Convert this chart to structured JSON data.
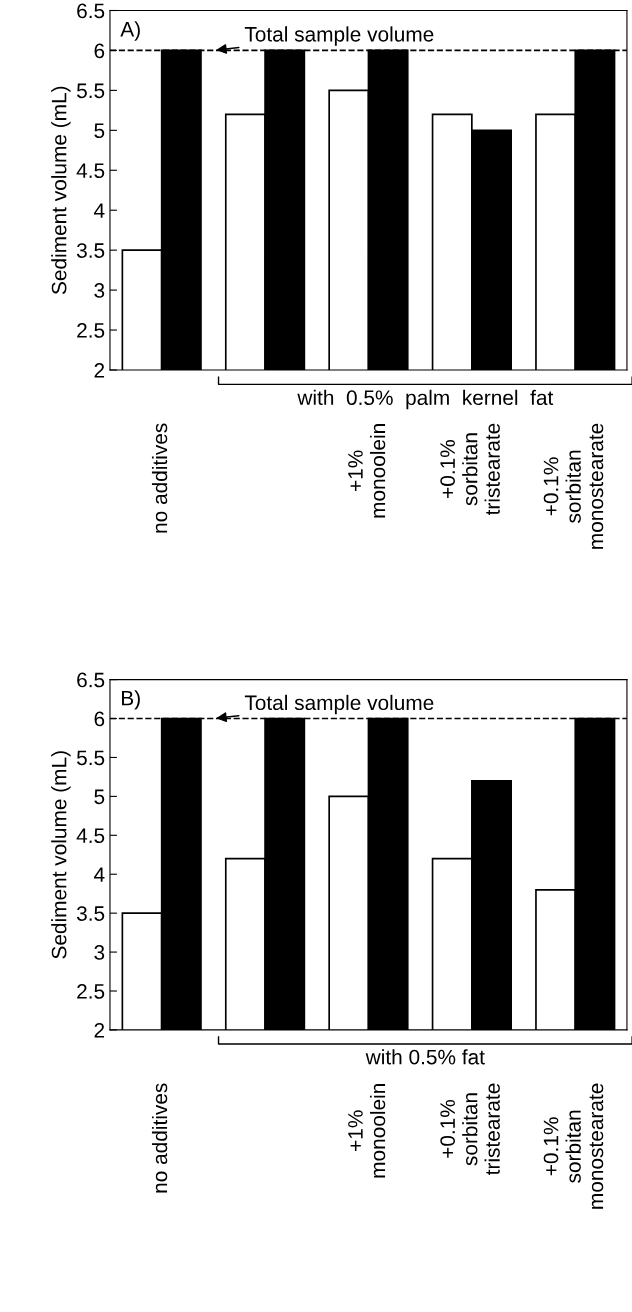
{
  "chart_data": [
    {
      "type": "bar",
      "title": "A)",
      "ylabel": "Sediment volume (mL)",
      "categories": [
        "no additives",
        null,
        "+1%\nmonoolein",
        "+0.1%\nsorbitan\ntristearate",
        "+0.1%\nsorbitan\nmonostearate"
      ],
      "series": [
        {
          "color": "#ffffff",
          "values": [
            3.5,
            5.2,
            5.5,
            5.2,
            5.2
          ]
        },
        {
          "color": "#000000",
          "values": [
            6,
            6,
            6,
            5,
            6
          ]
        }
      ],
      "ylim": [
        2,
        6.5
      ],
      "yticks": [
        2,
        2.5,
        3,
        3.5,
        4,
        4.5,
        5,
        5.5,
        6,
        6.5
      ],
      "ref_lines": [
        {
          "axis": "y",
          "value": 6,
          "label": "Total sample volume",
          "color": "#000000",
          "line_style": "dashed"
        }
      ],
      "annotations": [
        "with  0.5%  palm  kernel  fat"
      ],
      "grid": false,
      "legend": false
    },
    {
      "type": "bar",
      "title": "B)",
      "ylabel": "Sediment volume (mL)",
      "categories": [
        "no additives",
        null,
        "+1%\nmonoolein",
        "+0.1%\nsorbitan\ntristearate",
        "+0.1%\nsorbitan\nmonostearate"
      ],
      "series": [
        {
          "color": "#ffffff",
          "values": [
            3.5,
            4.2,
            5.0,
            4.2,
            3.8
          ]
        },
        {
          "color": "#000000",
          "values": [
            6,
            6,
            6,
            5.2,
            6
          ]
        }
      ],
      "ylim": [
        2,
        6.5
      ],
      "yticks": [
        2,
        2.5,
        3,
        3.5,
        4,
        4.5,
        5,
        5.5,
        6,
        6.5
      ],
      "ref_lines": [
        {
          "axis": "y",
          "value": 6,
          "label": "Total sample volume",
          "color": "#000000",
          "line_style": "dashed"
        }
      ],
      "annotations": [
        "with 0.5% fat"
      ],
      "grid": false,
      "legend": false
    }
  ]
}
